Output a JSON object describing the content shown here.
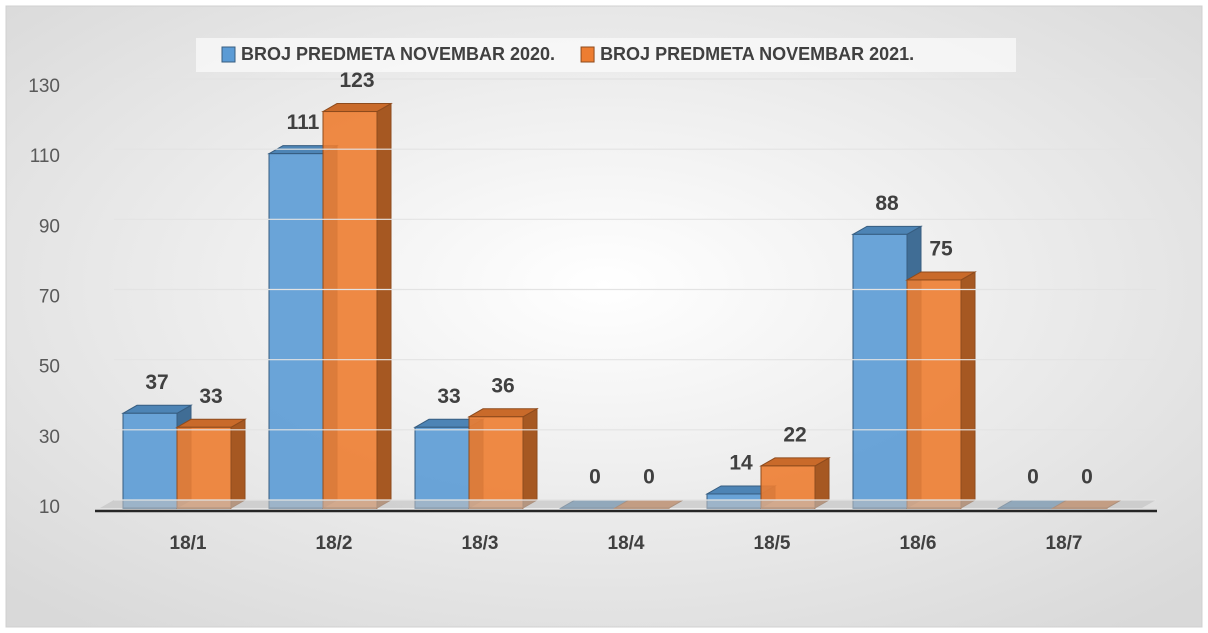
{
  "chart_data": {
    "type": "bar",
    "categories": [
      "18/1",
      "18/2",
      "18/3",
      "18/4",
      "18/5",
      "18/6",
      "18/7"
    ],
    "series": [
      {
        "name": "BROJ PREDMETA NOVEMBAR 2020.",
        "color": "#5b9bd5",
        "values": [
          37,
          111,
          33,
          0,
          14,
          88,
          0
        ]
      },
      {
        "name": "BROJ PREDMETA NOVEMBAR 2021.",
        "color": "#ed7d31",
        "values": [
          33,
          123,
          36,
          0,
          22,
          75,
          0
        ]
      }
    ],
    "ylim": [
      10,
      130
    ],
    "yticks": [
      10,
      30,
      50,
      70,
      90,
      110,
      130
    ],
    "grid": true,
    "legend": "top"
  }
}
